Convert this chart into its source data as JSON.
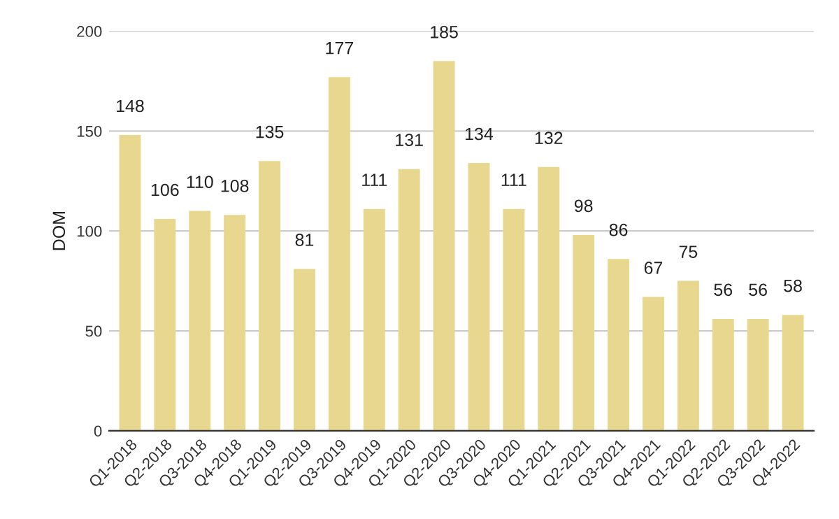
{
  "chart_data": {
    "type": "bar",
    "ylabel": "DOM",
    "categories": [
      "Q1-2018",
      "Q2-2018",
      "Q3-2018",
      "Q4-2018",
      "Q1-2019",
      "Q2-2019",
      "Q3-2019",
      "Q4-2019",
      "Q1-2020",
      "Q2-2020",
      "Q3-2020",
      "Q4-2020",
      "Q1-2021",
      "Q2-2021",
      "Q3-2021",
      "Q4-2021",
      "Q1-2022",
      "Q2-2022",
      "Q3-2022",
      "Q4-2022"
    ],
    "values": [
      148,
      106,
      110,
      108,
      135,
      81,
      177,
      111,
      131,
      185,
      134,
      111,
      132,
      98,
      86,
      67,
      75,
      56,
      56,
      58
    ],
    "color": "#e8d78e",
    "ylim": [
      0,
      200
    ],
    "yticks": [
      0,
      50,
      100,
      150,
      200
    ],
    "grid": "y",
    "data_labels": true
  }
}
